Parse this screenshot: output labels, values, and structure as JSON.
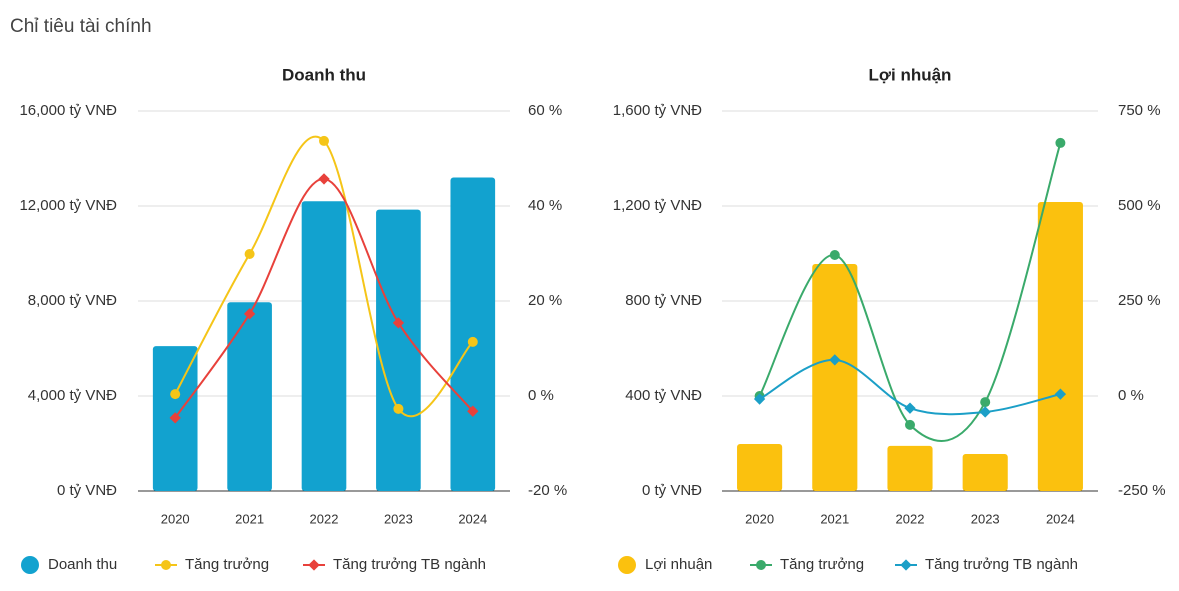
{
  "page_title": "Chỉ tiêu tài chính",
  "chart_data": [
    {
      "type": "combo",
      "title": "Doanh thu",
      "categories": [
        "2020",
        "2021",
        "2022",
        "2023",
        "2024"
      ],
      "ylim": [
        0,
        16000
      ],
      "yticks": [
        {
          "value": 0,
          "label": "0 tỷ VNĐ"
        },
        {
          "value": 4000,
          "label": "4,000 tỷ VNĐ"
        },
        {
          "value": 8000,
          "label": "8,000 tỷ VNĐ"
        },
        {
          "value": 12000,
          "label": "12,000 tỷ VNĐ"
        },
        {
          "value": 16000,
          "label": "16,000 tỷ VNĐ"
        }
      ],
      "y2lim": [
        -20,
        60
      ],
      "y2ticks": [
        {
          "value": -20,
          "label": "-20 %"
        },
        {
          "value": 0,
          "label": "0 %"
        },
        {
          "value": 20,
          "label": "20 %"
        },
        {
          "value": 40,
          "label": "40 %"
        },
        {
          "value": 60,
          "label": "60 %"
        }
      ],
      "grid": true,
      "series": [
        {
          "name": "Doanh thu",
          "type": "bar",
          "color": "#12a2cf",
          "values": [
            6100,
            7950,
            12200,
            11850,
            13200
          ]
        },
        {
          "name": "Tăng trưởng",
          "type": "line",
          "axis": "y2",
          "color": "#f5c518",
          "values": [
            0.4,
            29.9,
            53.7,
            -2.7,
            11.4
          ]
        },
        {
          "name": "Tăng trưởng TB ngành",
          "type": "line",
          "axis": "y2",
          "color": "#e8413b",
          "values": [
            -4.6,
            17.3,
            45.7,
            15.4,
            -3.2
          ]
        }
      ]
    },
    {
      "type": "combo",
      "title": "Lợi nhuận",
      "categories": [
        "2020",
        "2021",
        "2022",
        "2023",
        "2024"
      ],
      "ylim": [
        0,
        1600
      ],
      "yticks": [
        {
          "value": 0,
          "label": "0 tỷ VNĐ"
        },
        {
          "value": 400,
          "label": "400 tỷ VNĐ"
        },
        {
          "value": 800,
          "label": "800 tỷ VNĐ"
        },
        {
          "value": 1200,
          "label": "1,200 tỷ VNĐ"
        },
        {
          "value": 1600,
          "label": "1,600 tỷ VNĐ"
        }
      ],
      "y2lim": [
        -250,
        750
      ],
      "y2ticks": [
        {
          "value": -250,
          "label": "-250 %"
        },
        {
          "value": 0,
          "label": "0 %"
        },
        {
          "value": 250,
          "label": "250 %"
        },
        {
          "value": 500,
          "label": "500 %"
        },
        {
          "value": 750,
          "label": "750 %"
        }
      ],
      "grid": true,
      "series": [
        {
          "name": "Lợi nhuận",
          "type": "bar",
          "color": "#fbc10e",
          "values": [
            198,
            956,
            190,
            156,
            1217
          ]
        },
        {
          "name": "Tăng trưởng",
          "type": "line",
          "axis": "y2",
          "color": "#3aaa6b",
          "values": [
            0,
            371,
            -76,
            -16,
            666
          ]
        },
        {
          "name": "Tăng trưởng TB ngành",
          "type": "line",
          "axis": "y2",
          "color": "#1b9fc7",
          "values": [
            -8,
            95,
            -32,
            -42,
            5
          ]
        }
      ]
    }
  ]
}
